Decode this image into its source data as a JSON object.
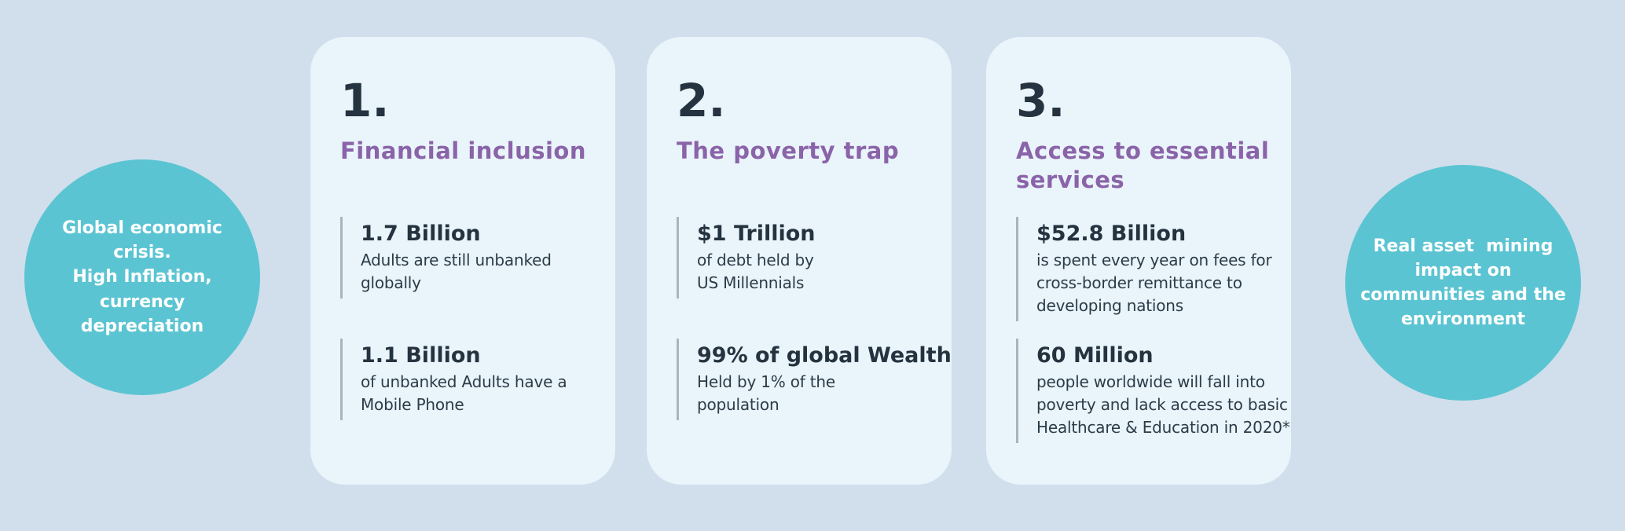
{
  "colors": {
    "background": "#d0dfeb",
    "card_background": "#e9f4fb",
    "circle_teal": "#5bc4d2",
    "heading_purple": "#8a63a8",
    "text_dark_navy": "#24333f",
    "stat_divider_gray": "#a8b5bd",
    "circle_text_white": "#ffffff"
  },
  "left_circle": {
    "text": "Global economic\ncrisis.\nHigh Inflation,\ncurrency\ndepreciation"
  },
  "right_circle": {
    "text": "Real asset  mining\nimpact on\ncommunities and the\nenvironment"
  },
  "cards": [
    {
      "number": "1.",
      "title": "Financial inclusion",
      "stats": [
        {
          "value": "1.7 Billion",
          "desc": "Adults are still unbanked\nglobally"
        },
        {
          "value": "1.1 Billion",
          "desc": "of unbanked Adults have a\nMobile Phone"
        }
      ]
    },
    {
      "number": "2.",
      "title": "The poverty trap",
      "stats": [
        {
          "value": "$1 Trillion",
          "desc": "of debt held by\nUS Millennials"
        },
        {
          "value": "99% of global Wealth",
          "desc": "Held by 1% of the\npopulation"
        }
      ]
    },
    {
      "number": "3.",
      "title": "Access to essential\nservices",
      "stats": [
        {
          "value": "$52.8 Billion",
          "desc": "is spent every year on fees for\ncross-border remittance to\ndeveloping nations"
        },
        {
          "value": "60 Million",
          "desc": "people worldwide will fall into\npoverty and lack access to basic\nHealthcare & Education in 2020*"
        }
      ]
    }
  ]
}
